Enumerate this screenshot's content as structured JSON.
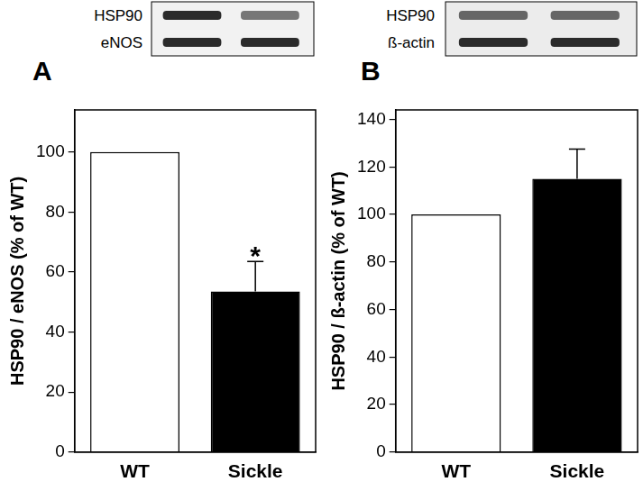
{
  "chart_data": [
    {
      "type": "bar",
      "title": "A",
      "blot_labels": [
        "HSP90",
        "eNOS"
      ],
      "categories": [
        "WT",
        "Sickle"
      ],
      "values": [
        100,
        53.5
      ],
      "errors": [
        null,
        10
      ],
      "colors": [
        "#ffffff",
        "#000000"
      ],
      "y_label": "HSP90 / eNOS (% of WT)",
      "ylim": [
        0,
        114
      ],
      "yticks": [
        0,
        20,
        40,
        60,
        80,
        100
      ],
      "grid": false,
      "annotations": [
        {
          "category": "Sickle",
          "text": "*"
        }
      ]
    },
    {
      "type": "bar",
      "title": "B",
      "blot_labels": [
        "HSP90",
        "ß-actin"
      ],
      "categories": [
        "WT",
        "Sickle"
      ],
      "values": [
        100,
        115
      ],
      "errors": [
        null,
        12.5
      ],
      "colors": [
        "#ffffff",
        "#000000"
      ],
      "y_label": "HSP90 / ß-actin (% of WT)",
      "ylim": [
        0,
        144
      ],
      "yticks": [
        0,
        20,
        40,
        60,
        80,
        100,
        120,
        140
      ],
      "grid": false,
      "annotations": []
    }
  ]
}
